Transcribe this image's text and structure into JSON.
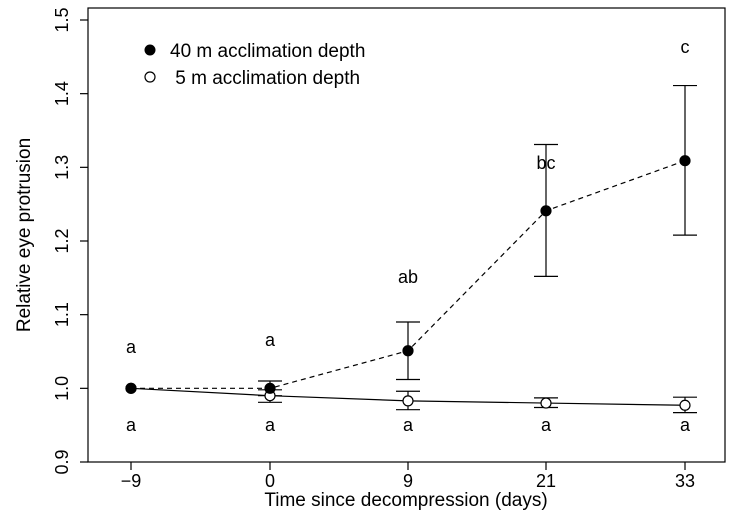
{
  "chart_data": {
    "type": "line",
    "xlabel": "Time since decompression (days)",
    "ylabel": "Relative eye protrusion",
    "x_ticks": [
      "−9",
      "0",
      "9",
      "21",
      "33"
    ],
    "y_ticks": [
      "0.9",
      "1.0",
      "1.1",
      "1.2",
      "1.3",
      "1.4",
      "1.5"
    ],
    "ylim": [
      0.9,
      1.5
    ],
    "grid": false,
    "legend_position": "top-left",
    "series": [
      {
        "name": "40 m acclimation depth",
        "marker": "filled-circle",
        "line_style": "dashed",
        "color": "#000000",
        "values": [
          1.0,
          1.0,
          1.051,
          1.241,
          1.309
        ],
        "error_low": [
          1.0,
          0.99,
          1.012,
          1.152,
          1.208
        ],
        "error_high": [
          1.0,
          1.01,
          1.09,
          1.331,
          1.411
        ],
        "letters": [
          "a",
          "a",
          "ab",
          "bc",
          "c"
        ]
      },
      {
        "name": " 5 m acclimation depth",
        "marker": "open-circle",
        "line_style": "solid",
        "color": "#000000",
        "values": [
          1.0,
          0.99,
          0.983,
          0.98,
          0.977
        ],
        "error_low": [
          1.0,
          0.981,
          0.971,
          0.974,
          0.967
        ],
        "error_high": [
          1.0,
          0.998,
          0.996,
          0.987,
          0.988
        ],
        "letters": [
          "a",
          "a",
          "a",
          "a",
          "a"
        ]
      }
    ]
  }
}
